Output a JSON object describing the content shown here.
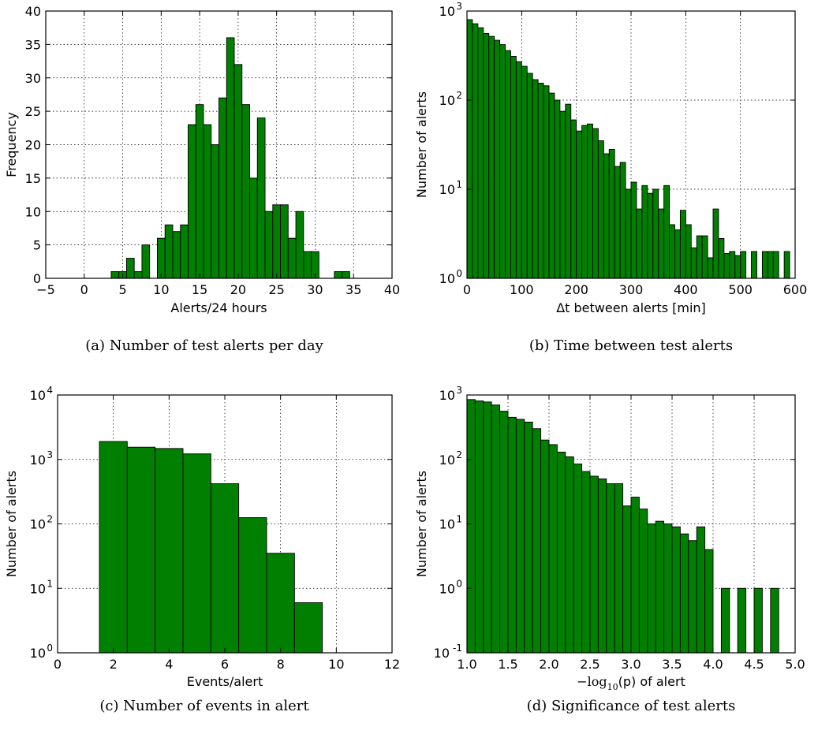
{
  "chart_data": [
    {
      "id": "a",
      "type": "bar",
      "ylabel": "Frequency",
      "xlabel": "Alerts/24 hours",
      "caption": "(a)  Number of test alerts per day",
      "yscale": "linear",
      "grid": true,
      "bar_color": "#007f00",
      "xlim": [
        -5,
        40
      ],
      "ylim": [
        0,
        40
      ],
      "xticks": [
        -5,
        0,
        5,
        10,
        15,
        20,
        25,
        30,
        35,
        40
      ],
      "xtick_labels": [
        "−5",
        "0",
        "5",
        "10",
        "15",
        "20",
        "25",
        "30",
        "35",
        "40"
      ],
      "yticks": [
        0,
        5,
        10,
        15,
        20,
        25,
        30,
        35,
        40
      ],
      "ytick_labels": [
        "0",
        "5",
        "10",
        "15",
        "20",
        "25",
        "30",
        "35",
        "40"
      ],
      "bins": [
        {
          "x0": 3.5,
          "x1": 4.5,
          "value": 1
        },
        {
          "x0": 4.5,
          "x1": 5.5,
          "value": 1
        },
        {
          "x0": 5.5,
          "x1": 6.5,
          "value": 3
        },
        {
          "x0": 6.5,
          "x1": 7.5,
          "value": 1
        },
        {
          "x0": 7.5,
          "x1": 8.5,
          "value": 5
        },
        {
          "x0": 9.5,
          "x1": 10.5,
          "value": 6
        },
        {
          "x0": 10.5,
          "x1": 11.5,
          "value": 8
        },
        {
          "x0": 11.5,
          "x1": 12.5,
          "value": 7
        },
        {
          "x0": 12.5,
          "x1": 13.5,
          "value": 8
        },
        {
          "x0": 13.5,
          "x1": 14.5,
          "value": 23
        },
        {
          "x0": 14.5,
          "x1": 15.5,
          "value": 26
        },
        {
          "x0": 15.5,
          "x1": 16.5,
          "value": 23
        },
        {
          "x0": 16.5,
          "x1": 17.5,
          "value": 20
        },
        {
          "x0": 17.5,
          "x1": 18.5,
          "value": 27
        },
        {
          "x0": 18.5,
          "x1": 19.5,
          "value": 36
        },
        {
          "x0": 19.5,
          "x1": 20.5,
          "value": 32
        },
        {
          "x0": 20.5,
          "x1": 21.5,
          "value": 26
        },
        {
          "x0": 21.5,
          "x1": 22.5,
          "value": 15
        },
        {
          "x0": 22.5,
          "x1": 23.5,
          "value": 24
        },
        {
          "x0": 23.5,
          "x1": 24.5,
          "value": 10
        },
        {
          "x0": 24.5,
          "x1": 25.5,
          "value": 11
        },
        {
          "x0": 25.5,
          "x1": 26.5,
          "value": 11
        },
        {
          "x0": 26.5,
          "x1": 27.5,
          "value": 6
        },
        {
          "x0": 27.5,
          "x1": 28.5,
          "value": 10
        },
        {
          "x0": 28.5,
          "x1": 29.5,
          "value": 4
        },
        {
          "x0": 29.5,
          "x1": 30.5,
          "value": 4
        },
        {
          "x0": 32.5,
          "x1": 33.5,
          "value": 1
        },
        {
          "x0": 33.5,
          "x1": 34.5,
          "value": 1
        }
      ]
    },
    {
      "id": "b",
      "type": "bar",
      "ylabel": "Number of alerts",
      "xlabel": "Δt between alerts [min]",
      "caption": "(b)  Time between test alerts",
      "yscale": "log",
      "grid": true,
      "bar_color": "#007f00",
      "xlim": [
        0,
        600
      ],
      "ylim": [
        1,
        1000
      ],
      "xticks": [
        0,
        100,
        200,
        300,
        400,
        500,
        600
      ],
      "xtick_labels": [
        "0",
        "100",
        "200",
        "300",
        "400",
        "500",
        "600"
      ],
      "yticks": [
        1,
        10,
        100,
        1000
      ],
      "ytick_labels": [
        "10",
        "10",
        "10",
        "10"
      ],
      "ytick_exponents": [
        "0",
        "1",
        "2",
        "3"
      ],
      "bin_start": 0,
      "bin_width": 10,
      "values": [
        800,
        720,
        650,
        560,
        520,
        470,
        420,
        360,
        310,
        270,
        240,
        200,
        170,
        155,
        145,
        120,
        100,
        75,
        90,
        60,
        45,
        52,
        54,
        48,
        35,
        25,
        28,
        18,
        20,
        10,
        12,
        6,
        11,
        9,
        10,
        6,
        11,
        4,
        3.5,
        5.8,
        4,
        2.2,
        3,
        3,
        1.7,
        6,
        2.8,
        1.9,
        2,
        1.8,
        2,
        0,
        2,
        0,
        2,
        2,
        2,
        0,
        2
      ]
    },
    {
      "id": "c",
      "type": "bar",
      "ylabel": "Number of alerts",
      "xlabel": "Events/alert",
      "caption": "(c)  Number of events in alert",
      "yscale": "log",
      "grid": true,
      "bar_color": "#007f00",
      "xlim": [
        0,
        12
      ],
      "ylim": [
        1,
        10000
      ],
      "xticks": [
        0,
        2,
        4,
        6,
        8,
        10,
        12
      ],
      "xtick_labels": [
        "0",
        "2",
        "4",
        "6",
        "8",
        "10",
        "12"
      ],
      "yticks": [
        1,
        10,
        100,
        1000,
        10000
      ],
      "ytick_labels": [
        "10",
        "10",
        "10",
        "10",
        "10"
      ],
      "ytick_exponents": [
        "0",
        "1",
        "2",
        "3",
        "4"
      ],
      "bins": [
        {
          "x0": 1.5,
          "x1": 2.5,
          "value": 1900
        },
        {
          "x0": 2.5,
          "x1": 3.5,
          "value": 1550
        },
        {
          "x0": 3.5,
          "x1": 4.5,
          "value": 1480
        },
        {
          "x0": 4.5,
          "x1": 5.5,
          "value": 1220
        },
        {
          "x0": 5.5,
          "x1": 6.5,
          "value": 420
        },
        {
          "x0": 6.5,
          "x1": 7.5,
          "value": 125
        },
        {
          "x0": 7.5,
          "x1": 8.5,
          "value": 35
        },
        {
          "x0": 8.5,
          "x1": 9.5,
          "value": 6
        }
      ]
    },
    {
      "id": "d",
      "type": "bar",
      "ylabel": "Number of alerts",
      "xlabel_prefix": "−log",
      "xlabel_sub": "10",
      "xlabel_suffix": "(p) of alert",
      "caption": "(d)  Significance of test alerts",
      "yscale": "log",
      "grid": true,
      "bar_color": "#007f00",
      "xlim": [
        1.0,
        5.0
      ],
      "ylim": [
        0.1,
        1000
      ],
      "xticks": [
        1.0,
        1.5,
        2.0,
        2.5,
        3.0,
        3.5,
        4.0,
        4.5,
        5.0
      ],
      "xtick_labels": [
        "1.0",
        "1.5",
        "2.0",
        "2.5",
        "3.0",
        "3.5",
        "4.0",
        "4.5",
        "5.0"
      ],
      "yticks": [
        0.1,
        1,
        10,
        100,
        1000
      ],
      "ytick_labels": [
        "10",
        "10",
        "10",
        "10",
        "10"
      ],
      "ytick_exponents": [
        "-1",
        "0",
        "1",
        "2",
        "3"
      ],
      "bin_start": 1.0,
      "bin_width": 0.1,
      "values": [
        850,
        810,
        780,
        700,
        560,
        450,
        420,
        380,
        300,
        200,
        170,
        130,
        110,
        85,
        65,
        55,
        50,
        42,
        42,
        19,
        26,
        17,
        10,
        11,
        10,
        9,
        7,
        5.5,
        9,
        4,
        0,
        1,
        0,
        1,
        0,
        1,
        0,
        1,
        0
      ]
    }
  ]
}
